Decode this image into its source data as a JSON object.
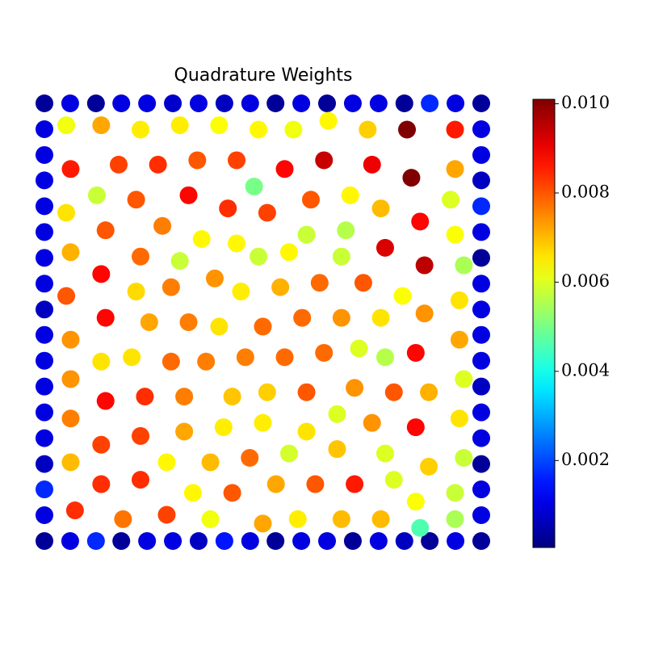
{
  "chart_data": {
    "type": "scatter",
    "title": "Quadrature Weights",
    "colormap": "jet",
    "xlim": [
      0,
      1
    ],
    "ylim": [
      0,
      1
    ],
    "clim": [
      5e-05,
      0.0101
    ],
    "cticks": [
      0.002,
      0.004,
      0.006,
      0.008,
      {
        "value": 0.01,
        "label": "0.010"
      }
    ],
    "x": [
      0,
      0.059,
      0.118,
      0.176,
      0.235,
      0.294,
      0.353,
      0.412,
      0.471,
      0.529,
      0.588,
      0.647,
      0.706,
      0.765,
      0.824,
      0.882,
      0.941,
      1,
      1,
      1,
      1,
      1,
      1,
      1,
      1,
      1,
      1,
      1,
      1,
      1,
      1,
      1,
      1,
      1,
      0,
      0.059,
      0.118,
      0.176,
      0.235,
      0.294,
      0.353,
      0.412,
      0.471,
      0.529,
      0.588,
      0.647,
      0.706,
      0.765,
      0.824,
      0.882,
      0.941,
      1,
      0,
      0,
      0,
      0,
      0,
      0,
      0,
      0,
      0,
      0,
      0,
      0,
      0,
      0,
      0,
      0,
      0.05,
      0.13,
      0.22,
      0.31,
      0.4,
      0.49,
      0.57,
      0.65,
      0.74,
      0.83,
      0.94,
      0.06,
      0.17,
      0.26,
      0.35,
      0.44,
      0.55,
      0.64,
      0.75,
      0.84,
      0.94,
      0.48,
      0.12,
      0.21,
      0.33,
      0.61,
      0.7,
      0.93,
      0.05,
      0.42,
      0.51,
      0.77,
      0.86,
      0.14,
      0.27,
      0.36,
      0.44,
      0.6,
      0.69,
      0.94,
      0.06,
      0.22,
      0.31,
      0.49,
      0.56,
      0.68,
      0.78,
      0.87,
      0.96,
      0.13,
      0.05,
      0.21,
      0.29,
      0.39,
      0.45,
      0.54,
      0.63,
      0.73,
      0.82,
      0.95,
      0.14,
      0.24,
      0.33,
      0.4,
      0.5,
      0.59,
      0.68,
      0.77,
      0.87,
      0.06,
      0.95,
      0.13,
      0.2,
      0.29,
      0.37,
      0.46,
      0.55,
      0.64,
      0.72,
      0.78,
      0.85,
      0.06,
      0.96,
      0.14,
      0.23,
      0.32,
      0.43,
      0.51,
      0.6,
      0.71,
      0.8,
      0.88,
      0.06,
      0.95,
      0.22,
      0.32,
      0.41,
      0.5,
      0.6,
      0.67,
      0.75,
      0.85,
      0.13,
      0.67,
      0.78,
      0.06,
      0.28,
      0.38,
      0.47,
      0.56,
      0.88,
      0.96,
      0.13,
      0.22,
      0.34,
      0.43,
      0.53,
      0.62,
      0.71,
      0.8,
      0.94,
      0.85,
      0.07,
      0.18,
      0.28,
      0.38,
      0.5,
      0.58,
      0.68,
      0.77,
      0.94,
      0.86
    ],
    "y": [
      0,
      0,
      0,
      0,
      0,
      0,
      0,
      0,
      0,
      0,
      0,
      0,
      0,
      0,
      0,
      0,
      0,
      0,
      0.059,
      0.118,
      0.176,
      0.235,
      0.294,
      0.353,
      0.412,
      0.471,
      0.529,
      0.588,
      0.647,
      0.706,
      0.765,
      0.824,
      0.882,
      0.941,
      1,
      1,
      1,
      1,
      1,
      1,
      1,
      1,
      1,
      1,
      1,
      1,
      1,
      1,
      1,
      1,
      1,
      1,
      0.059,
      0.118,
      0.176,
      0.235,
      0.294,
      0.353,
      0.412,
      0.471,
      0.529,
      0.588,
      0.647,
      0.706,
      0.765,
      0.824,
      0.882,
      0.941,
      0.95,
      0.95,
      0.94,
      0.95,
      0.95,
      0.94,
      0.94,
      0.96,
      0.94,
      0.94,
      0.94,
      0.85,
      0.86,
      0.86,
      0.87,
      0.87,
      0.85,
      0.87,
      0.86,
      0.83,
      0.85,
      0.81,
      0.79,
      0.78,
      0.79,
      0.78,
      0.79,
      0.78,
      0.75,
      0.76,
      0.75,
      0.76,
      0.73,
      0.71,
      0.72,
      0.69,
      0.68,
      0.7,
      0.71,
      0.7,
      0.66,
      0.65,
      0.64,
      0.65,
      0.66,
      0.65,
      0.67,
      0.63,
      0.63,
      0.61,
      0.56,
      0.57,
      0.58,
      0.6,
      0.57,
      0.58,
      0.59,
      0.59,
      0.56,
      0.55,
      0.51,
      0.5,
      0.5,
      0.49,
      0.49,
      0.51,
      0.51,
      0.51,
      0.52,
      0.46,
      0.46,
      0.41,
      0.42,
      0.41,
      0.41,
      0.42,
      0.42,
      0.43,
      0.44,
      0.42,
      0.43,
      0.37,
      0.37,
      0.32,
      0.33,
      0.33,
      0.33,
      0.34,
      0.34,
      0.35,
      0.34,
      0.34,
      0.28,
      0.28,
      0.24,
      0.25,
      0.26,
      0.27,
      0.25,
      0.29,
      0.27,
      0.26,
      0.22,
      0.21,
      0.2,
      0.18,
      0.18,
      0.18,
      0.19,
      0.2,
      0.17,
      0.19,
      0.13,
      0.14,
      0.11,
      0.11,
      0.13,
      0.13,
      0.13,
      0.14,
      0.11,
      0.09,
      0.07,
      0.05,
      0.06,
      0.05,
      0.04,
      0.05,
      0.05,
      0.05,
      0.05,
      0.03
    ],
    "values": [
      0.0003,
      0.001,
      0.0017,
      0.0003,
      0.001,
      0.001,
      0.0007,
      0.0015,
      0.001,
      0.0003,
      0.001,
      0.001,
      0.0003,
      0.001,
      0.0007,
      0.0003,
      0.001,
      0.0003,
      0.001,
      0.001,
      0.0003,
      0.001,
      0.001,
      0.0007,
      0.001,
      0.001,
      0.001,
      0.001,
      0.0003,
      0.001,
      0.0017,
      0.0007,
      0.001,
      0.001,
      0.0003,
      0.001,
      0.0003,
      0.001,
      0.001,
      0.0008,
      0.001,
      0.0007,
      0.001,
      0.0003,
      0.001,
      0.0003,
      0.001,
      0.001,
      0.0003,
      0.0017,
      0.001,
      0.0003,
      0.001,
      0.0017,
      0.0007,
      0.001,
      0.001,
      0.001,
      0.001,
      0.001,
      0.0007,
      0.001,
      0.001,
      0.001,
      0.001,
      0.001,
      0.001,
      0.001,
      0.0062,
      0.0072,
      0.0065,
      0.0065,
      0.0063,
      0.0064,
      0.0062,
      0.0064,
      0.0068,
      0.0101,
      0.0086,
      0.0086,
      0.0082,
      0.0084,
      0.008,
      0.0082,
      0.0088,
      0.0094,
      0.009,
      0.0101,
      0.0072,
      0.005,
      0.0058,
      0.008,
      0.0088,
      0.008,
      0.0064,
      0.006,
      0.0066,
      0.0084,
      0.0082,
      0.007,
      0.0088,
      0.008,
      0.0076,
      0.0064,
      0.0064,
      0.0058,
      0.0056,
      0.0063,
      0.0071,
      0.0078,
      0.0058,
      0.0058,
      0.0064,
      0.0058,
      0.0092,
      0.0095,
      0.0055,
      0.0088,
      0.008,
      0.0067,
      0.0076,
      0.0074,
      0.0065,
      0.0071,
      0.0078,
      0.008,
      0.0063,
      0.0066,
      0.0088,
      0.0072,
      0.0076,
      0.0066,
      0.0078,
      0.0078,
      0.0074,
      0.0066,
      0.0074,
      0.0074,
      0.0072,
      0.0066,
      0.0066,
      0.0078,
      0.0076,
      0.0076,
      0.0078,
      0.0078,
      0.006,
      0.0056,
      0.0088,
      0.0074,
      0.006,
      0.0088,
      0.0084,
      0.0076,
      0.0069,
      0.0068,
      0.008,
      0.0074,
      0.008,
      0.0071,
      0.0076,
      0.0066,
      0.0082,
      0.0072,
      0.0065,
      0.0065,
      0.0066,
      0.006,
      0.0074,
      0.0088,
      0.0082,
      0.0069,
      0.006,
      0.007,
      0.0064,
      0.007,
      0.0078,
      0.0059,
      0.0068,
      0.0058,
      0.0084,
      0.0084,
      0.0064,
      0.008,
      0.0072,
      0.008,
      0.0086,
      0.006,
      0.0058,
      0.0063,
      0.0084,
      0.0077,
      0.0082,
      0.0062,
      0.0072,
      0.0065,
      0.007,
      0.007,
      0.0055,
      0.0046
    ]
  }
}
